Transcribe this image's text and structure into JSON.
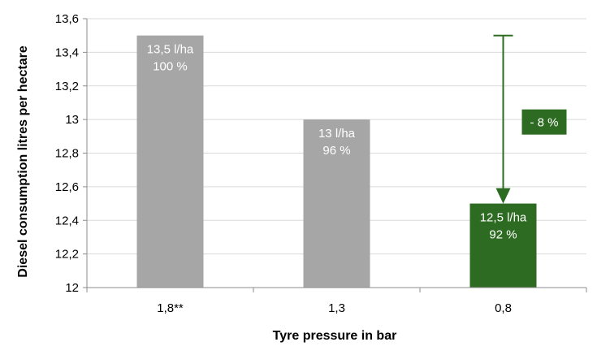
{
  "chart_data": {
    "type": "bar",
    "categories": [
      "1,8**",
      "1,3",
      "0,8"
    ],
    "values": [
      13.5,
      13.0,
      12.5
    ],
    "bar_labels": [
      [
        "13,5 l/ha",
        "100 %"
      ],
      [
        "13 l/ha",
        "96 %"
      ],
      [
        "12,5 l/ha",
        "92 %"
      ]
    ],
    "bar_colors": [
      "#a6a6a6",
      "#a6a6a6",
      "#2e6b22"
    ],
    "xlabel": "Tyre pressure in bar",
    "ylabel": "Diesel consumption litres per hectare",
    "ylim": [
      12,
      13.6
    ],
    "yticks": [
      12,
      12.2,
      12.4,
      12.6,
      12.8,
      13,
      13.2,
      13.4,
      13.6
    ],
    "ytick_labels": [
      "12",
      "12,2",
      "12,4",
      "12,6",
      "12,8",
      "13",
      "13,2",
      "13,4",
      "13,6"
    ],
    "grid": true,
    "annotation": {
      "text": "- 8 %",
      "from_value": 13.5,
      "to_value": 12.5,
      "category_index": 2,
      "color": "#2e6b22"
    }
  }
}
